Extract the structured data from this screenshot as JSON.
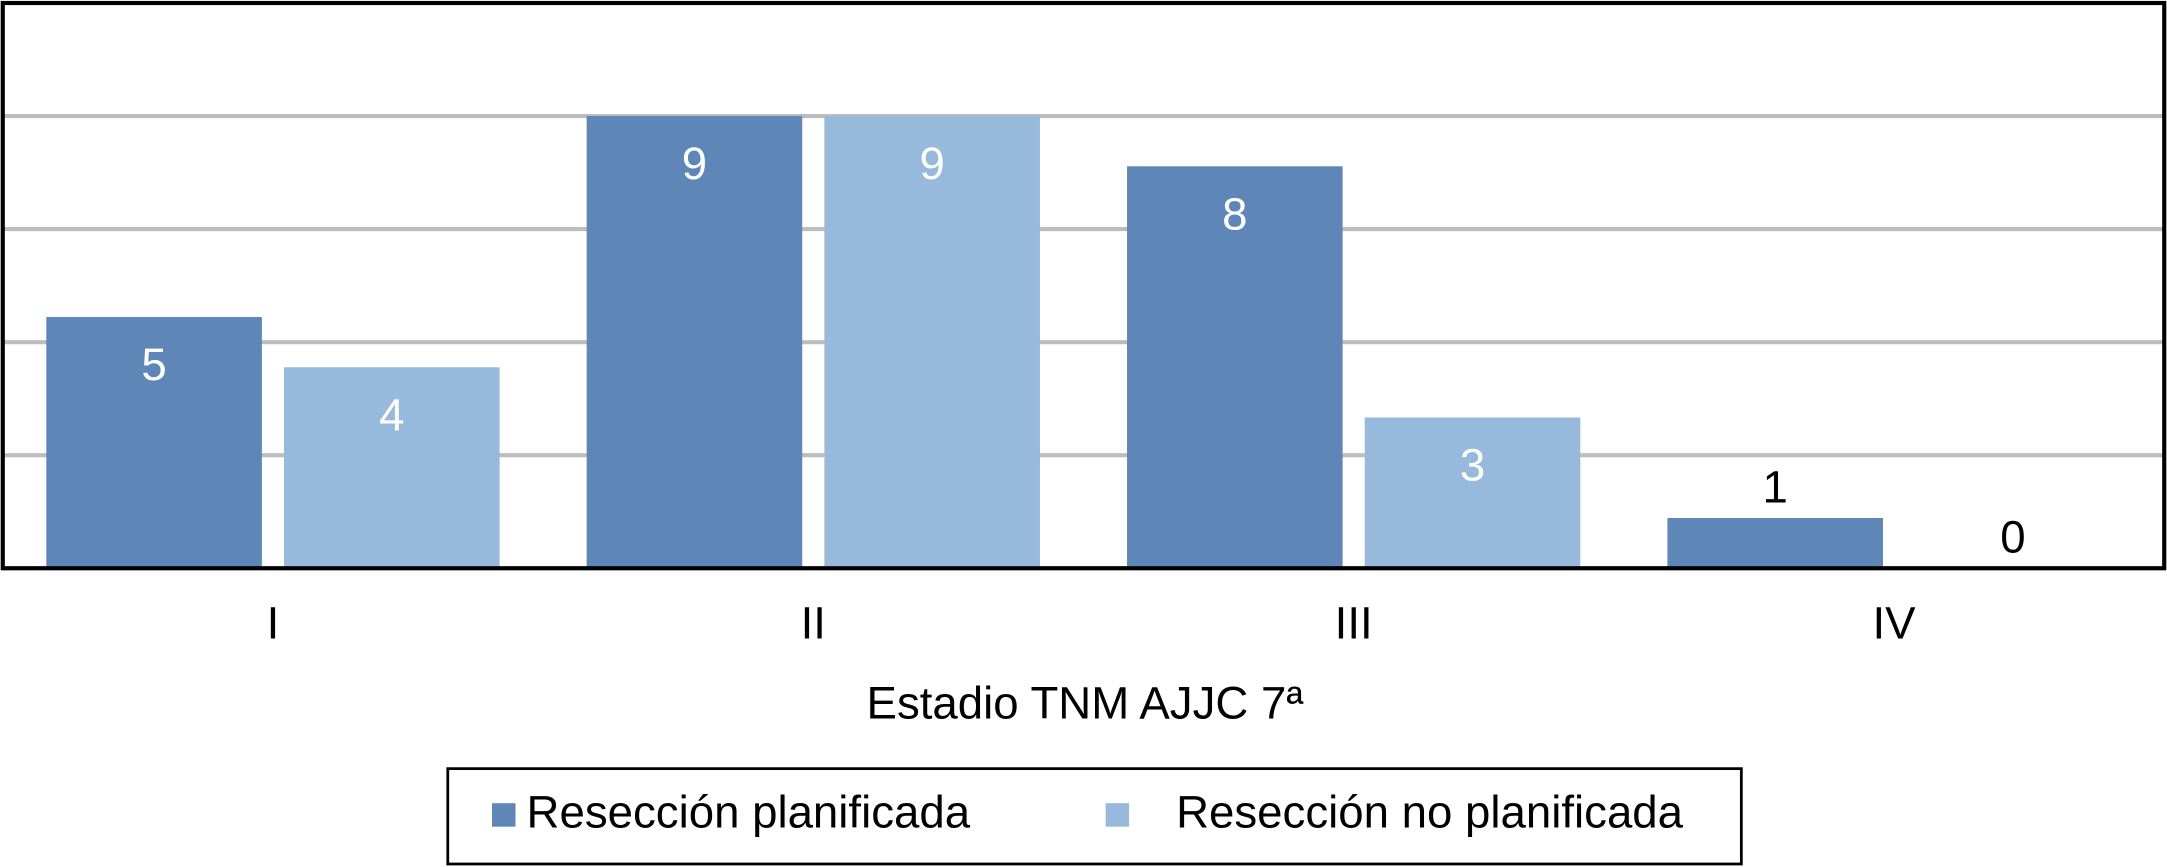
{
  "chart_data": {
    "type": "bar",
    "x_label": "Estadio TNM AJJC 7ª",
    "categories": [
      "I",
      "II",
      "III",
      "IV"
    ],
    "series": [
      {
        "name": "Resección planificada",
        "color": "#5e87b8",
        "values": [
          5,
          9,
          8,
          1
        ]
      },
      {
        "name": "Resección no planificada",
        "color": "#97b9db",
        "values": [
          4,
          9,
          3,
          0
        ]
      }
    ],
    "ylim": [
      0,
      11.25
    ],
    "yticks": [
      0,
      2.25,
      4.5,
      6.75,
      9
    ],
    "grid": true
  }
}
